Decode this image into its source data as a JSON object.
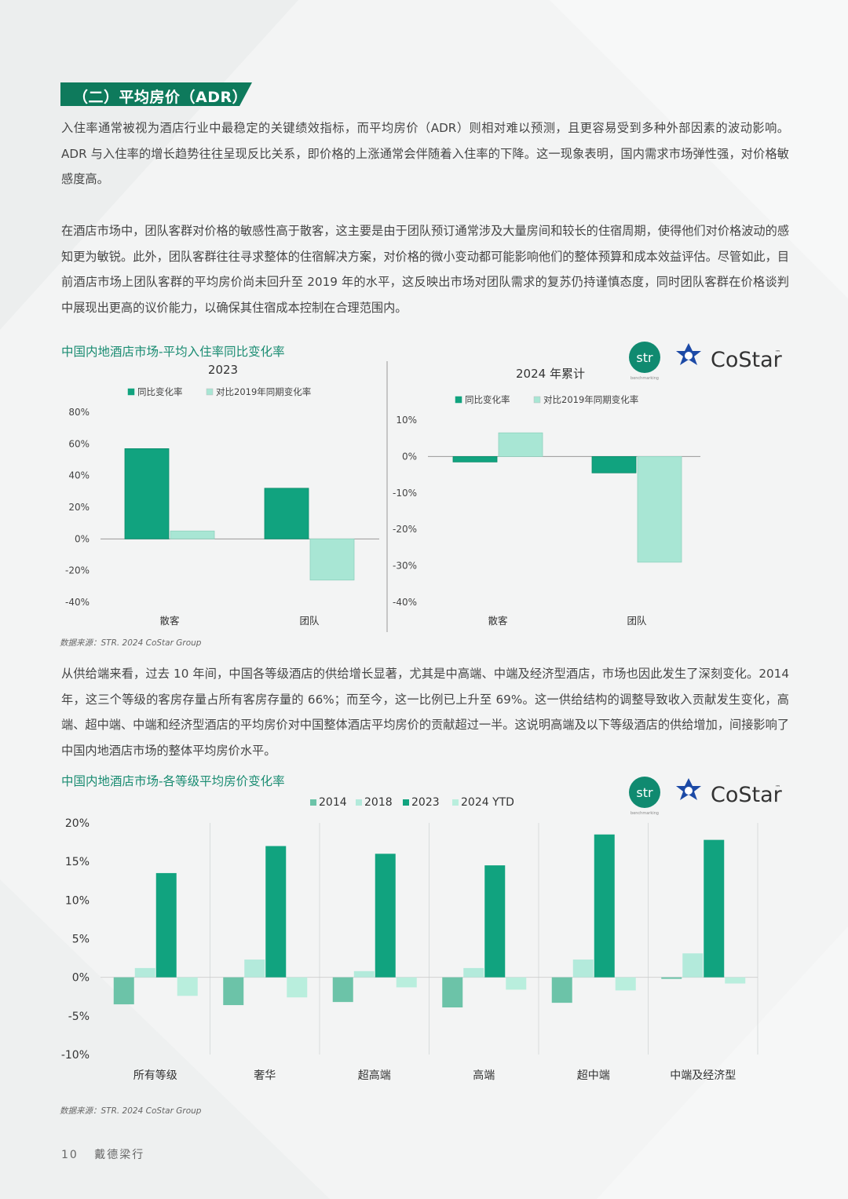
{
  "header": {
    "title": "（二）平均房价（ADR）"
  },
  "paragraphs": {
    "p1": "入住率通常被视为酒店行业中最稳定的关键绩效指标，而平均房价（ADR）则相对难以预测，且更容易受到多种外部因素的波动影响。ADR 与入住率的增长趋势往往呈现反比关系，即价格的上涨通常会伴随着入住率的下降。这一现象表明，国内需求市场弹性强，对价格敏感度高。",
    "p2": "在酒店市场中，团队客群对价格的敏感性高于散客，这主要是由于团队预订通常涉及大量房间和较长的住宿周期，使得他们对价格波动的感知更为敏锐。此外，团队客群往往寻求整体的住宿解决方案，对价格的微小变动都可能影响他们的整体预算和成本效益评估。尽管如此，目前酒店市场上团队客群的平均房价尚未回升至 2019 年的水平，这反映出市场对团队需求的复苏仍持谨慎态度，同时团队客群在价格谈判中展现出更高的议价能力，以确保其住宿成本控制在合理范围内。",
    "p3": "从供给端来看，过去 10 年间，中国各等级酒店的供给增长显著，尤其是中高端、中端及经济型酒店，市场也因此发生了深刻变化。2014 年，这三个等级的客房存量占所有客房存量的 66%；而至今，这一比例已上升至 69%。这一供给结构的调整导致收入贡献发生变化，高端、超中端、中端和经济型酒店的平均房价对中国整体酒店平均房价的贡献超过一半。这说明高端及以下等级酒店的供给增加，间接影响了中国内地酒店市场的整体平均房价水平。"
  },
  "logos": {
    "str_text": "str",
    "str_sub": "benchmarking",
    "costar_text": "CoStar",
    "costar_tm": "™"
  },
  "chart1": {
    "title": "中国内地酒店市场-平均入住率同比变化率",
    "source": "数据来源：STR. 2024 CoStar Group"
  },
  "chart2": {
    "title": "中国内地酒店市场-各等级平均房价变化率",
    "source": "数据来源：STR. 2024 CoStar Group"
  },
  "colors": {
    "dark": "#11a37f",
    "light": "#a8e6d4",
    "header": "#0e7a5c",
    "title": "#1a8c72"
  },
  "chart_data": [
    {
      "type": "bar",
      "title": "2023",
      "categories": [
        "散客",
        "团队"
      ],
      "series": [
        {
          "name": "同比变化率",
          "values": [
            57,
            32
          ]
        },
        {
          "name": "对比2019年同期变化率",
          "values": [
            5,
            -26
          ]
        }
      ],
      "ylim": [
        -40,
        80
      ],
      "yticks": [
        "80%",
        "60%",
        "40%",
        "20%",
        "0%",
        "-20%",
        "-40%"
      ],
      "ytick_values": [
        80,
        60,
        40,
        20,
        0,
        -20,
        -40
      ]
    },
    {
      "type": "bar",
      "title": "2024 年累计",
      "categories": [
        "散客",
        "团队"
      ],
      "series": [
        {
          "name": "同比变化率",
          "values": [
            -1.5,
            -4.5
          ]
        },
        {
          "name": "对比2019年同期变化率",
          "values": [
            6.5,
            -29
          ]
        }
      ],
      "ylim": [
        -40,
        10
      ],
      "yticks": [
        "10%",
        "0%",
        "-10%",
        "-20%",
        "-30%",
        "-40%"
      ],
      "ytick_values": [
        10,
        0,
        -10,
        -20,
        -30,
        -40
      ]
    },
    {
      "type": "bar",
      "categories": [
        "所有等级",
        "奢华",
        "超高端",
        "高端",
        "超中端",
        "中端及经济型"
      ],
      "series": [
        {
          "name": "2014",
          "values": [
            -3.5,
            -3.6,
            -3.2,
            -3.9,
            -3.3,
            -0.2
          ]
        },
        {
          "name": "2018",
          "values": [
            1.2,
            2.3,
            0.8,
            1.2,
            2.3,
            3.1
          ]
        },
        {
          "name": "2023",
          "values": [
            13.5,
            17.0,
            16.0,
            14.5,
            18.5,
            17.8
          ]
        },
        {
          "name": "2024 YTD",
          "values": [
            -2.4,
            -2.6,
            -1.3,
            -1.6,
            -1.7,
            -0.8
          ]
        }
      ],
      "ylim": [
        -10,
        20
      ],
      "yticks": [
        "20%",
        "15%",
        "10%",
        "5%",
        "0%",
        "-5%",
        "-10%"
      ],
      "ytick_values": [
        20,
        15,
        10,
        5,
        0,
        -5,
        -10
      ]
    }
  ],
  "footer": {
    "page": "10",
    "brand": "戴德梁行"
  }
}
